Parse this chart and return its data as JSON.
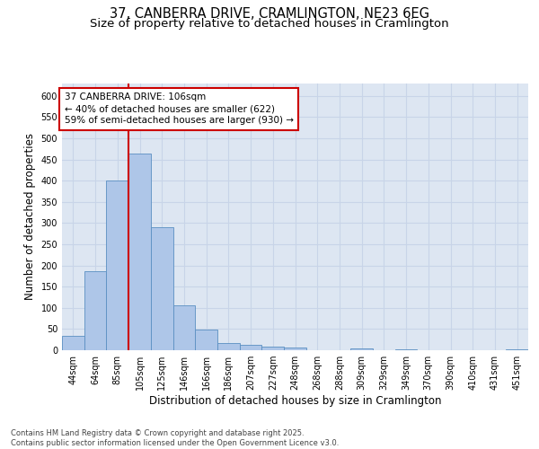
{
  "title": "37, CANBERRA DRIVE, CRAMLINGTON, NE23 6EG",
  "subtitle": "Size of property relative to detached houses in Cramlington",
  "xlabel": "Distribution of detached houses by size in Cramlington",
  "ylabel": "Number of detached properties",
  "categories": [
    "44sqm",
    "64sqm",
    "85sqm",
    "105sqm",
    "125sqm",
    "146sqm",
    "166sqm",
    "186sqm",
    "207sqm",
    "227sqm",
    "248sqm",
    "268sqm",
    "288sqm",
    "309sqm",
    "329sqm",
    "349sqm",
    "370sqm",
    "390sqm",
    "410sqm",
    "431sqm",
    "451sqm"
  ],
  "values": [
    33,
    186,
    401,
    463,
    290,
    105,
    48,
    17,
    13,
    9,
    6,
    1,
    0,
    4,
    0,
    3,
    0,
    0,
    0,
    1,
    3
  ],
  "bar_color": "#aec6e8",
  "bar_edge_color": "#5a8fc2",
  "grid_color": "#c8d4e8",
  "background_color": "#dde6f2",
  "vline_x_index": 3,
  "vline_color": "#cc0000",
  "annotation_text": "37 CANBERRA DRIVE: 106sqm\n← 40% of detached houses are smaller (622)\n59% of semi-detached houses are larger (930) →",
  "annotation_box_color": "#ffffff",
  "annotation_box_edge": "#cc0000",
  "ylim": [
    0,
    630
  ],
  "yticks": [
    0,
    50,
    100,
    150,
    200,
    250,
    300,
    350,
    400,
    450,
    500,
    550,
    600
  ],
  "footer_text": "Contains HM Land Registry data © Crown copyright and database right 2025.\nContains public sector information licensed under the Open Government Licence v3.0.",
  "title_fontsize": 10.5,
  "subtitle_fontsize": 9.5,
  "axis_label_fontsize": 8.5,
  "tick_fontsize": 7,
  "annotation_fontsize": 7.5,
  "footer_fontsize": 6
}
